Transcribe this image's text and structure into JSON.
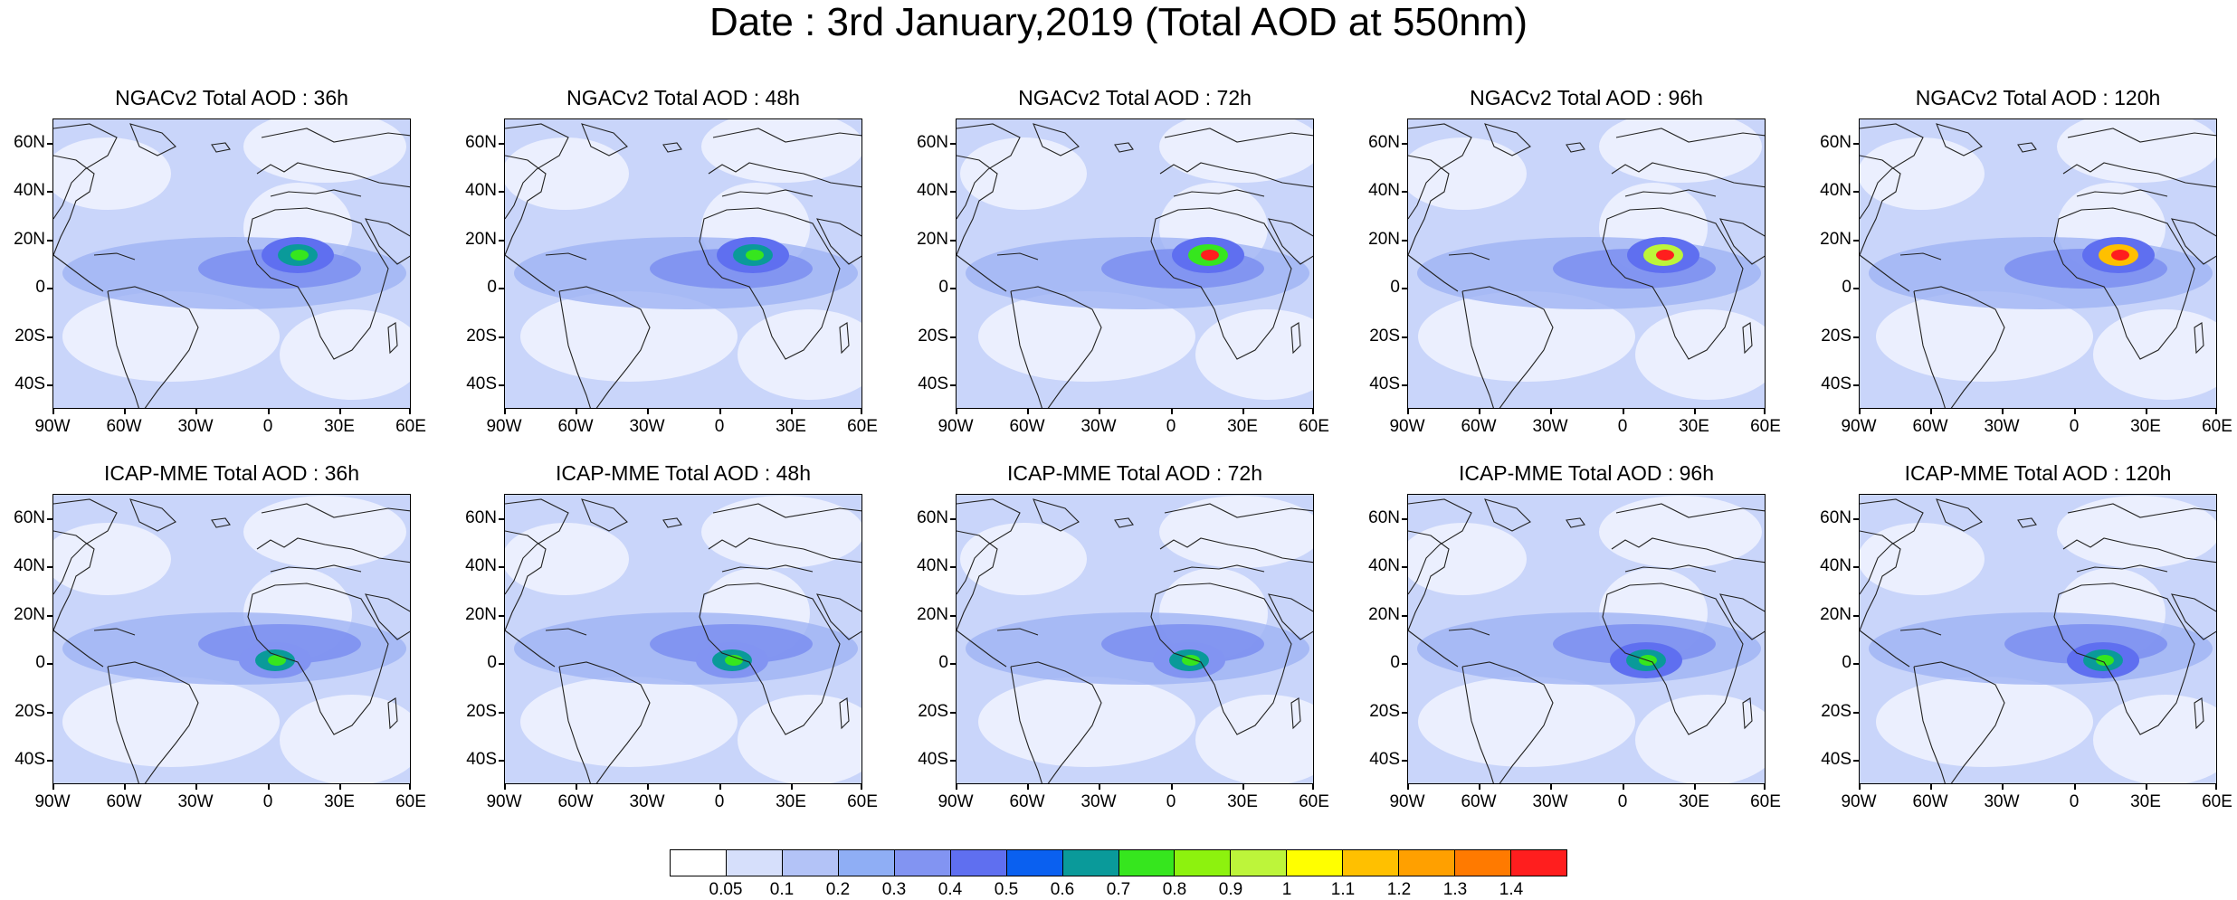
{
  "title": "Date : 3rd January,2019 (Total AOD at 550nm)",
  "panels": [
    {
      "title": "NGACv2 Total AOD : 36h"
    },
    {
      "title": "NGACv2 Total AOD : 48h"
    },
    {
      "title": "NGACv2 Total AOD : 72h"
    },
    {
      "title": "NGACv2 Total AOD : 96h"
    },
    {
      "title": "NGACv2 Total AOD : 120h"
    },
    {
      "title": "ICAP-MME Total AOD : 36h"
    },
    {
      "title": "ICAP-MME Total AOD : 48h"
    },
    {
      "title": "ICAP-MME Total AOD : 72h"
    },
    {
      "title": "ICAP-MME Total AOD : 96h"
    },
    {
      "title": "ICAP-MME Total AOD : 120h"
    }
  ],
  "lat_labels": [
    "60N",
    "40N",
    "20N",
    "0",
    "20S",
    "40S"
  ],
  "lon_labels": [
    "90W",
    "60W",
    "30W",
    "0",
    "30E",
    "60E"
  ],
  "colorbar": {
    "colors": [
      "#ffffff",
      "#d6dffb",
      "#b3c3f7",
      "#8faef5",
      "#8294f2",
      "#5f6ff0",
      "#0a60f0",
      "#0a9a9a",
      "#36e61e",
      "#8df20e",
      "#bdf53a",
      "#ffff00",
      "#ffc000",
      "#ffa000",
      "#ff7a00",
      "#ff1e1e"
    ],
    "labels": [
      "0.05",
      "0.1",
      "0.2",
      "0.3",
      "0.4",
      "0.5",
      "0.6",
      "0.7",
      "0.8",
      "0.9",
      "1",
      "1.1",
      "1.2",
      "1.3",
      "1.4"
    ]
  },
  "map_theme": {
    "base": "#c9d5fa",
    "light": "#eef2fe",
    "mid": "#9fb3f4",
    "deep": "#7b8ef0",
    "coast": "#222222"
  },
  "hotspots": [
    [
      "#5f6ff0",
      "#0a9a9a",
      "#36e61e"
    ],
    [
      "#5f6ff0",
      "#0a9a9a",
      "#36e61e"
    ],
    [
      "#5f6ff0",
      "#36e61e",
      "#ff1e1e"
    ],
    [
      "#5f6ff0",
      "#bdf53a",
      "#ff1e1e"
    ],
    [
      "#5f6ff0",
      "#ffc000",
      "#ff1e1e"
    ],
    [
      "#8294f2",
      "#0a9a9a",
      "#36e61e"
    ],
    [
      "#8294f2",
      "#0a9a9a",
      "#36e61e"
    ],
    [
      "#8294f2",
      "#0a9a9a",
      "#36e61e"
    ],
    [
      "#5f6ff0",
      "#0a9a9a",
      "#36e61e"
    ],
    [
      "#5f6ff0",
      "#0a9a9a",
      "#36e61e"
    ]
  ]
}
